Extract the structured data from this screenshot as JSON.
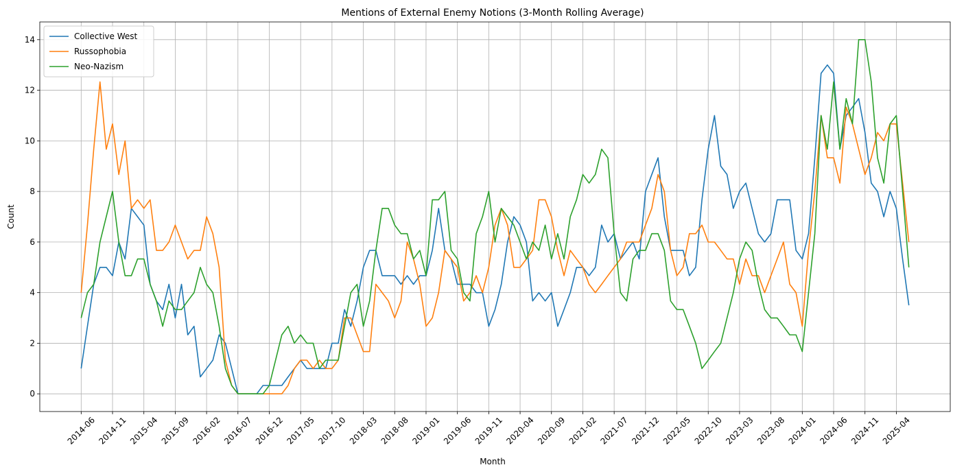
{
  "chart_data": {
    "type": "line",
    "title": "Mentions of External Enemy Notions (3-Month Rolling Average)",
    "x_label": "Month",
    "y_label": "Count",
    "categories": [
      "2014-06",
      null,
      null,
      null,
      null,
      "2014-11",
      null,
      null,
      null,
      null,
      "2015-04",
      null,
      null,
      null,
      null,
      "2015-09",
      null,
      null,
      null,
      null,
      "2016-02",
      null,
      null,
      null,
      null,
      "2016-07",
      null,
      null,
      null,
      null,
      "2016-12",
      null,
      null,
      null,
      null,
      "2017-05",
      null,
      null,
      null,
      null,
      "2017-10",
      null,
      null,
      null,
      null,
      "2018-03",
      null,
      null,
      null,
      null,
      "2018-08",
      null,
      null,
      null,
      null,
      "2019-01",
      null,
      null,
      null,
      null,
      "2019-06",
      null,
      null,
      null,
      null,
      "2019-11",
      null,
      null,
      null,
      null,
      "2020-04",
      null,
      null,
      null,
      null,
      "2020-09",
      null,
      null,
      null,
      null,
      "2021-02",
      null,
      null,
      null,
      null,
      "2021-07",
      null,
      null,
      null,
      null,
      "2021-12",
      null,
      null,
      null,
      null,
      "2022-05",
      null,
      null,
      null,
      null,
      "2022-10",
      null,
      null,
      null,
      null,
      "2023-03",
      null,
      null,
      null,
      null,
      "2023-08",
      null,
      null,
      null,
      null,
      "2024-01",
      null,
      null,
      null,
      null,
      "2024-06",
      null,
      null,
      null,
      null,
      "2024-11",
      null,
      null,
      null,
      null,
      "2025-04",
      null,
      null
    ],
    "series": [
      {
        "name": "Collective West",
        "color": "#1f77b4",
        "values": [
          1,
          2.67,
          4.33,
          5,
          5,
          4.67,
          6,
          5.33,
          7.33,
          7,
          6.67,
          4.33,
          3.67,
          3.33,
          4.33,
          3,
          4.33,
          2.33,
          2.67,
          0.67,
          1,
          1.33,
          2.33,
          2,
          1,
          0,
          0,
          0,
          0,
          0.33,
          0.33,
          0.33,
          0.33,
          0.67,
          1,
          1.33,
          1,
          1,
          1,
          1,
          2,
          2,
          3.33,
          2.67,
          3.67,
          5,
          5.67,
          5.67,
          4.67,
          4.67,
          4.67,
          4.33,
          4.67,
          4.33,
          4.67,
          4.67,
          5.67,
          7.33,
          5.67,
          5.33,
          4.33,
          4.33,
          4.33,
          4,
          4,
          2.67,
          3.33,
          4.33,
          6,
          7,
          6.67,
          6,
          3.67,
          4,
          3.67,
          4,
          2.67,
          3.33,
          4,
          5,
          5,
          4.67,
          5,
          6.67,
          6,
          6.33,
          5.33,
          5.67,
          6,
          5.33,
          8,
          8.67,
          9.33,
          7,
          5.67,
          5.67,
          5.67,
          4.67,
          5,
          7.67,
          9.67,
          11,
          9,
          8.67,
          7.33,
          8,
          8.33,
          7.33,
          6.33,
          6,
          6.33,
          7.67,
          7.67,
          7.67,
          5.67,
          5.33,
          6.33,
          9.33,
          12.67,
          13,
          12.67,
          9.67,
          11,
          11.33,
          11.67,
          10.33,
          8.33,
          8,
          7,
          8,
          7.33,
          5.33,
          3.5
        ]
      },
      {
        "name": "Russophobia",
        "color": "#ff7f0e",
        "values": [
          4,
          6.67,
          9.67,
          12.33,
          9.67,
          10.67,
          8.67,
          10,
          7.33,
          7.67,
          7.33,
          7.67,
          5.67,
          5.67,
          6,
          6.67,
          6,
          5.33,
          5.67,
          5.67,
          7,
          6.33,
          5,
          1.33,
          0.33,
          0,
          0,
          0,
          0,
          0,
          0,
          0,
          0,
          0.33,
          1,
          1.33,
          1.33,
          1,
          1.33,
          1,
          1,
          1.33,
          3,
          3,
          2.33,
          1.67,
          1.67,
          4.33,
          4,
          3.67,
          3,
          3.67,
          6,
          5.33,
          4.33,
          2.67,
          3,
          4,
          5.67,
          5.33,
          5,
          3.67,
          4,
          4.67,
          4,
          5,
          6.67,
          7.33,
          6.67,
          5,
          5,
          5.33,
          5.67,
          7.67,
          7.67,
          7,
          5.67,
          4.67,
          5.67,
          5.33,
          5,
          4.33,
          4,
          4.33,
          4.67,
          5,
          5.33,
          6,
          6,
          6,
          6.67,
          7.33,
          8.67,
          8,
          5.67,
          4.67,
          5,
          6.33,
          6.33,
          6.67,
          6,
          6,
          5.67,
          5.33,
          5.33,
          4.33,
          5.33,
          4.67,
          4.67,
          4,
          4.67,
          5.33,
          6,
          4.33,
          4,
          2.67,
          5.67,
          8,
          11,
          9.33,
          9.33,
          8.33,
          11.33,
          10.67,
          9.67,
          8.67,
          9.33,
          10.33,
          10,
          10.67,
          10.67,
          8.33,
          6
        ]
      },
      {
        "name": "Neo-Nazism",
        "color": "#2ca02c",
        "values": [
          3,
          4,
          4.33,
          6,
          7,
          8,
          6,
          4.67,
          4.67,
          5.33,
          5.33,
          4.33,
          3.67,
          2.67,
          3.67,
          3.33,
          3.33,
          3.67,
          4,
          5,
          4.33,
          4,
          2.67,
          1,
          0.33,
          0,
          0,
          0,
          0,
          0,
          0.33,
          1.33,
          2.33,
          2.67,
          2,
          2.33,
          2,
          2,
          1,
          1.33,
          1.33,
          1.33,
          2.67,
          4,
          4.33,
          2.67,
          3.67,
          5.67,
          7.33,
          7.33,
          6.67,
          6.33,
          6.33,
          5.33,
          5.67,
          4.67,
          7.67,
          7.67,
          8,
          5.67,
          5.33,
          4,
          3.67,
          6.33,
          7,
          8,
          6,
          7.33,
          7,
          6.67,
          6,
          5.33,
          6,
          5.67,
          6.67,
          5.33,
          6.33,
          5.33,
          7,
          7.67,
          8.67,
          8.33,
          8.67,
          9.67,
          9.33,
          6.33,
          4,
          3.67,
          5.33,
          5.67,
          5.67,
          6.33,
          6.33,
          5.67,
          3.67,
          3.33,
          3.33,
          2.67,
          2,
          1,
          1.33,
          1.67,
          2,
          3,
          4,
          5.33,
          6,
          5.67,
          4.33,
          3.33,
          3,
          3,
          2.67,
          2.33,
          2.33,
          1.67,
          4,
          6.33,
          11,
          9.67,
          12.33,
          9.67,
          11.67,
          10.67,
          14,
          14,
          12.33,
          9.33,
          8.33,
          10.67,
          11,
          8,
          5
        ]
      }
    ],
    "ylim": [
      -0.7,
      14.7
    ],
    "yticks": [
      0,
      2,
      4,
      6,
      8,
      10,
      12,
      14
    ],
    "grid": true,
    "legend": "upper left"
  }
}
